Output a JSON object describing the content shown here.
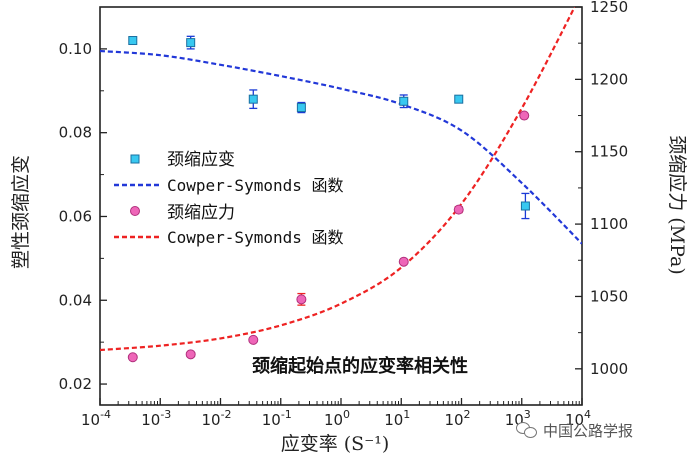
{
  "chart_data": {
    "type": "scatter",
    "xlabel": "应变率 (S⁻¹)",
    "ylabel_left": "塑性颈缩应变",
    "ylabel_right": "颈缩应力 (MPa)",
    "annotation": "颈缩起始点的应变率相关性",
    "x_scale": "log",
    "xlim": [
      0.0001,
      10000
    ],
    "ylim_left": [
      0.015,
      0.11
    ],
    "ylim_right": [
      975,
      1250
    ],
    "x_tick_exponents": [
      "-4",
      "-3",
      "-2",
      "-1",
      "0",
      "1",
      "2",
      "3",
      "4"
    ],
    "y_left_ticks": [
      "0.02",
      "0.04",
      "0.06",
      "0.08",
      "0.10"
    ],
    "y_left_tick_values": [
      0.02,
      0.04,
      0.06,
      0.08,
      0.1
    ],
    "y_right_ticks": [
      "1000",
      "1050",
      "1100",
      "1150",
      "1200",
      "1250"
    ],
    "y_right_tick_values": [
      1000,
      1050,
      1100,
      1150,
      1200,
      1250
    ],
    "legend": [
      {
        "label": "颈缩应变",
        "marker": "square",
        "color": "#38c8f0"
      },
      {
        "label": "Cowper-Symonds 函数",
        "line": "dashed",
        "color": "#2238d8"
      },
      {
        "label": "颈缩应力",
        "marker": "circle",
        "color": "#ee66b8"
      },
      {
        "label": "Cowper-Symonds 函数",
        "line": "dashed",
        "color": "#ee2222"
      }
    ],
    "series": [
      {
        "axis": "left",
        "marker": "square",
        "color": "#38c8f0",
        "error_color": "#1a3ad6",
        "points": [
          {
            "x": 0.00035,
            "y": 0.102,
            "err": 0.0
          },
          {
            "x": 0.0032,
            "y": 0.1015,
            "err": 0.0015
          },
          {
            "x": 0.035,
            "y": 0.088,
            "err": 0.0022
          },
          {
            "x": 0.22,
            "y": 0.086,
            "err": 0.0012
          },
          {
            "x": 11,
            "y": 0.0875,
            "err": 0.0015
          },
          {
            "x": 90,
            "y": 0.088,
            "err": 0.0008
          },
          {
            "x": 1150,
            "y": 0.0625,
            "err": 0.003
          }
        ]
      },
      {
        "axis": "right",
        "marker": "circle",
        "color": "#ee66b8",
        "error_color": "#ee2222",
        "points": [
          {
            "x": 0.00035,
            "y": 1008,
            "err": 0
          },
          {
            "x": 0.0032,
            "y": 1010,
            "err": 0
          },
          {
            "x": 0.035,
            "y": 1020,
            "err": 0
          },
          {
            "x": 0.22,
            "y": 1048,
            "err": 4
          },
          {
            "x": 11,
            "y": 1074,
            "err": 0
          },
          {
            "x": 90,
            "y": 1110,
            "err": 2
          },
          {
            "x": 1100,
            "y": 1175,
            "err": 0
          }
        ]
      }
    ],
    "fit_left": {
      "color": "#2238d8",
      "points": [
        [
          0.0001,
          0.0995
        ],
        [
          0.001,
          0.0985
        ],
        [
          0.01,
          0.0962
        ],
        [
          0.1,
          0.0935
        ],
        [
          1,
          0.0905
        ],
        [
          10,
          0.0868
        ],
        [
          100,
          0.0805
        ],
        [
          1000,
          0.068
        ],
        [
          10000,
          0.0535
        ]
      ]
    },
    "fit_right": {
      "color": "#ee2222",
      "points": [
        [
          0.0001,
          1013
        ],
        [
          0.001,
          1016
        ],
        [
          0.01,
          1021
        ],
        [
          0.1,
          1030
        ],
        [
          1,
          1045
        ],
        [
          10,
          1070
        ],
        [
          100,
          1114
        ],
        [
          1000,
          1180
        ],
        [
          10000,
          1260
        ]
      ]
    }
  },
  "watermark": "中国公路学报"
}
